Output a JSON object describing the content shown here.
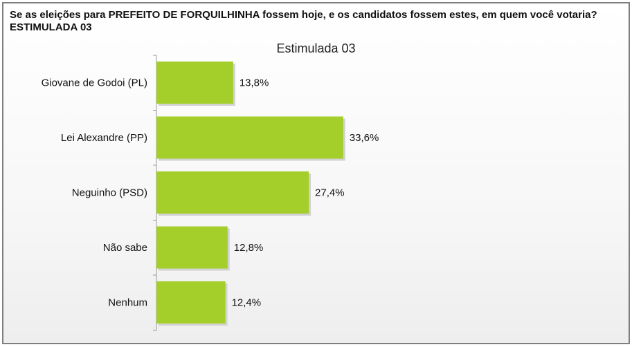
{
  "question": "Se as eleições para PREFEITO DE FORQUILHINHA fossem hoje, e os candidatos fossem estes, em quem você votaria? ESTIMULADA 03",
  "chart_data": {
    "type": "bar",
    "orientation": "horizontal",
    "title": "Estimulada 03",
    "categories": [
      "Giovane de Godoi (PL)",
      "Lei Alexandre (PP)",
      "Neguinho (PSD)",
      "Não sabe",
      "Nenhum"
    ],
    "values": [
      13.8,
      33.6,
      27.4,
      12.8,
      12.4
    ],
    "value_labels": [
      "13,8%",
      "33,6%",
      "27,4%",
      "12,8%",
      "12,4%"
    ],
    "unit": "%",
    "bar_color": "#a4cf2a",
    "grid": false,
    "legend": "none"
  }
}
